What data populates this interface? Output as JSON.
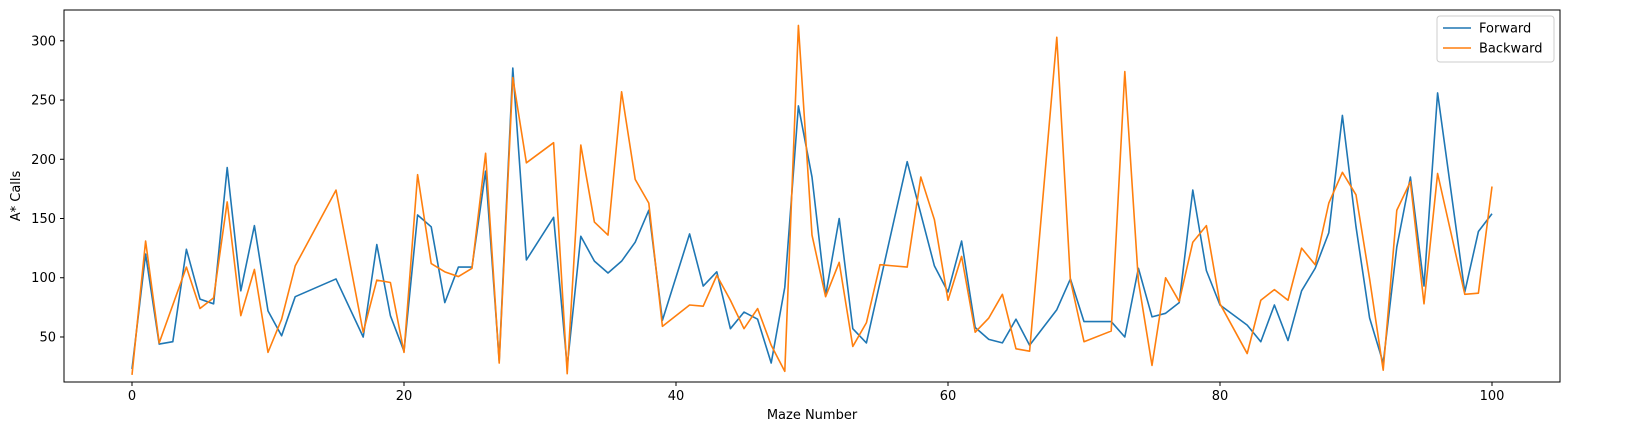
{
  "chart_data": {
    "type": "line",
    "xlabel": "Maze Number",
    "ylabel": "A* Calls",
    "xlim": [
      -5,
      105
    ],
    "ylim": [
      12,
      326
    ],
    "xticks": [
      0,
      20,
      40,
      60,
      80,
      100
    ],
    "yticks": [
      50,
      100,
      150,
      200,
      250,
      300
    ],
    "grid": false,
    "legend_position": "top-right",
    "series": [
      {
        "name": "Forward",
        "color": "#1f77b4",
        "points": [
          [
            0,
            23
          ],
          [
            1,
            120
          ],
          [
            2,
            44
          ],
          [
            3,
            46
          ],
          [
            4,
            124
          ],
          [
            5,
            82
          ],
          [
            6,
            78
          ],
          [
            7,
            193
          ],
          [
            8,
            89
          ],
          [
            9,
            144
          ],
          [
            10,
            72
          ],
          [
            11,
            51
          ],
          [
            12,
            84
          ],
          [
            15,
            99
          ],
          [
            17,
            50
          ],
          [
            18,
            128
          ],
          [
            19,
            68
          ],
          [
            20,
            38
          ],
          [
            21,
            153
          ],
          [
            22,
            143
          ],
          [
            23,
            79
          ],
          [
            24,
            109
          ],
          [
            25,
            109
          ],
          [
            26,
            190
          ],
          [
            27,
            30
          ],
          [
            28,
            277
          ],
          [
            29,
            115
          ],
          [
            31,
            151
          ],
          [
            32,
            25
          ],
          [
            33,
            135
          ],
          [
            34,
            114
          ],
          [
            35,
            104
          ],
          [
            36,
            114
          ],
          [
            37,
            130
          ],
          [
            38,
            157
          ],
          [
            39,
            64
          ],
          [
            41,
            137
          ],
          [
            42,
            93
          ],
          [
            43,
            105
          ],
          [
            44,
            57
          ],
          [
            45,
            71
          ],
          [
            46,
            65
          ],
          [
            47,
            28
          ],
          [
            48,
            92
          ],
          [
            49,
            245
          ],
          [
            50,
            185
          ],
          [
            51,
            85
          ],
          [
            52,
            150
          ],
          [
            53,
            57
          ],
          [
            54,
            45
          ],
          [
            57,
            198
          ],
          [
            59,
            110
          ],
          [
            60,
            88
          ],
          [
            61,
            131
          ],
          [
            62,
            58
          ],
          [
            63,
            48
          ],
          [
            64,
            45
          ],
          [
            65,
            65
          ],
          [
            66,
            43
          ],
          [
            68,
            73
          ],
          [
            69,
            99
          ],
          [
            70,
            63
          ],
          [
            72,
            63
          ],
          [
            73,
            50
          ],
          [
            74,
            108
          ],
          [
            75,
            67
          ],
          [
            76,
            70
          ],
          [
            77,
            79
          ],
          [
            78,
            174
          ],
          [
            79,
            106
          ],
          [
            80,
            77
          ],
          [
            82,
            60
          ],
          [
            83,
            46
          ],
          [
            84,
            77
          ],
          [
            85,
            47
          ],
          [
            86,
            89
          ],
          [
            87,
            108
          ],
          [
            88,
            138
          ],
          [
            89,
            237
          ],
          [
            90,
            143
          ],
          [
            91,
            66
          ],
          [
            92,
            28
          ],
          [
            93,
            126
          ],
          [
            94,
            185
          ],
          [
            95,
            93
          ],
          [
            96,
            256
          ],
          [
            98,
            88
          ],
          [
            99,
            139
          ],
          [
            100,
            154
          ]
        ]
      },
      {
        "name": "Backward",
        "color": "#ff7f0e",
        "points": [
          [
            0,
            18
          ],
          [
            1,
            131
          ],
          [
            2,
            45
          ],
          [
            4,
            109
          ],
          [
            5,
            74
          ],
          [
            6,
            83
          ],
          [
            7,
            164
          ],
          [
            8,
            68
          ],
          [
            9,
            107
          ],
          [
            10,
            37
          ],
          [
            11,
            65
          ],
          [
            12,
            110
          ],
          [
            15,
            174
          ],
          [
            17,
            54
          ],
          [
            18,
            98
          ],
          [
            19,
            96
          ],
          [
            20,
            37
          ],
          [
            21,
            187
          ],
          [
            22,
            112
          ],
          [
            23,
            105
          ],
          [
            24,
            101
          ],
          [
            25,
            108
          ],
          [
            26,
            205
          ],
          [
            27,
            28
          ],
          [
            28,
            269
          ],
          [
            29,
            197
          ],
          [
            31,
            214
          ],
          [
            32,
            19
          ],
          [
            33,
            212
          ],
          [
            34,
            147
          ],
          [
            35,
            136
          ],
          [
            36,
            257
          ],
          [
            37,
            183
          ],
          [
            38,
            163
          ],
          [
            39,
            59
          ],
          [
            41,
            77
          ],
          [
            42,
            76
          ],
          [
            43,
            102
          ],
          [
            44,
            81
          ],
          [
            45,
            57
          ],
          [
            46,
            74
          ],
          [
            47,
            43
          ],
          [
            48,
            21
          ],
          [
            49,
            313
          ],
          [
            50,
            136
          ],
          [
            51,
            84
          ],
          [
            52,
            113
          ],
          [
            53,
            42
          ],
          [
            54,
            62
          ],
          [
            55,
            111
          ],
          [
            57,
            109
          ],
          [
            58,
            185
          ],
          [
            59,
            149
          ],
          [
            60,
            81
          ],
          [
            61,
            118
          ],
          [
            62,
            54
          ],
          [
            63,
            66
          ],
          [
            64,
            86
          ],
          [
            65,
            40
          ],
          [
            66,
            38
          ],
          [
            68,
            303
          ],
          [
            69,
            98
          ],
          [
            70,
            46
          ],
          [
            72,
            55
          ],
          [
            73,
            274
          ],
          [
            74,
            97
          ],
          [
            75,
            26
          ],
          [
            76,
            100
          ],
          [
            77,
            80
          ],
          [
            78,
            130
          ],
          [
            79,
            144
          ],
          [
            80,
            78
          ],
          [
            82,
            36
          ],
          [
            83,
            81
          ],
          [
            84,
            90
          ],
          [
            85,
            81
          ],
          [
            86,
            125
          ],
          [
            87,
            111
          ],
          [
            88,
            163
          ],
          [
            89,
            189
          ],
          [
            90,
            170
          ],
          [
            91,
            99
          ],
          [
            92,
            22
          ],
          [
            93,
            157
          ],
          [
            94,
            181
          ],
          [
            95,
            78
          ],
          [
            96,
            188
          ],
          [
            98,
            86
          ],
          [
            99,
            87
          ],
          [
            100,
            177
          ]
        ]
      }
    ]
  }
}
